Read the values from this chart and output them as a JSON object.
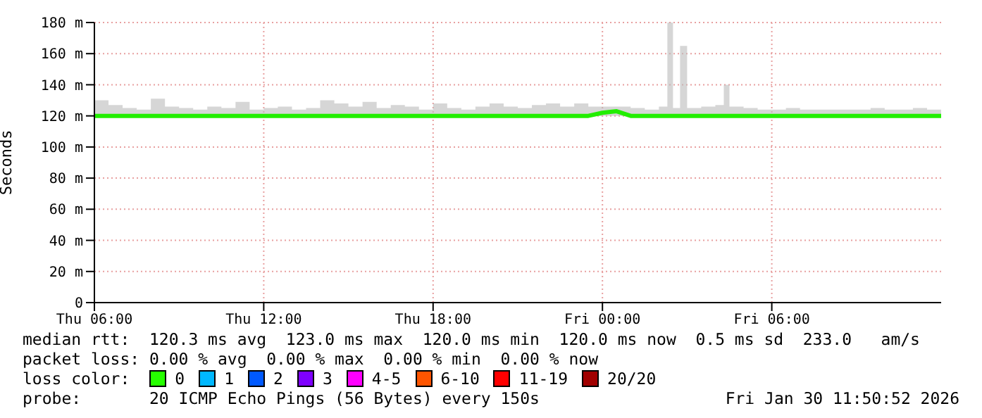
{
  "chart_data": {
    "type": "line",
    "ylabel": "Seconds",
    "x": [
      "2026-01-29T06:00",
      "2026-01-29T06:30",
      "2026-01-29T07:00",
      "2026-01-29T07:30",
      "2026-01-29T08:00",
      "2026-01-29T08:30",
      "2026-01-29T09:00",
      "2026-01-29T09:30",
      "2026-01-29T10:00",
      "2026-01-29T10:30",
      "2026-01-29T11:00",
      "2026-01-29T11:30",
      "2026-01-29T12:00",
      "2026-01-29T12:30",
      "2026-01-29T13:00",
      "2026-01-29T13:30",
      "2026-01-29T14:00",
      "2026-01-29T14:30",
      "2026-01-29T15:00",
      "2026-01-29T15:30",
      "2026-01-29T16:00",
      "2026-01-29T16:30",
      "2026-01-29T17:00",
      "2026-01-29T17:30",
      "2026-01-29T18:00",
      "2026-01-29T18:30",
      "2026-01-29T19:00",
      "2026-01-29T19:30",
      "2026-01-29T20:00",
      "2026-01-29T20:30",
      "2026-01-29T21:00",
      "2026-01-29T21:30",
      "2026-01-29T22:00",
      "2026-01-29T22:30",
      "2026-01-29T23:00",
      "2026-01-29T23:30",
      "2026-01-30T00:00",
      "2026-01-30T00:30",
      "2026-01-30T01:00",
      "2026-01-30T01:30",
      "2026-01-30T02:00",
      "2026-01-30T02:18",
      "2026-01-30T02:30",
      "2026-01-30T02:45",
      "2026-01-30T03:00",
      "2026-01-30T03:30",
      "2026-01-30T04:00",
      "2026-01-30T04:18",
      "2026-01-30T04:30",
      "2026-01-30T05:00",
      "2026-01-30T05:30",
      "2026-01-30T06:00",
      "2026-01-30T06:30",
      "2026-01-30T07:00",
      "2026-01-30T07:30",
      "2026-01-30T08:00",
      "2026-01-30T08:30",
      "2026-01-30T09:00",
      "2026-01-30T09:30",
      "2026-01-30T10:00",
      "2026-01-30T10:30",
      "2026-01-30T11:00",
      "2026-01-30T11:30",
      "2026-01-30T12:00"
    ],
    "series": [
      {
        "color": "#22ee00",
        "values": [
          120,
          120,
          120,
          120,
          120,
          120,
          120,
          120,
          120,
          120,
          120,
          120,
          120,
          120,
          120,
          120,
          120,
          120,
          120,
          120,
          120,
          120,
          120,
          120,
          120,
          120,
          120,
          120,
          120,
          120,
          120,
          120,
          120,
          120,
          120,
          120,
          122,
          123,
          120,
          120,
          120,
          120,
          120,
          120,
          120,
          120,
          120,
          120,
          120,
          120,
          120,
          120,
          120,
          120,
          120,
          120,
          120,
          120,
          120,
          120,
          120,
          120,
          120,
          120
        ],
        "lower": [
          120,
          120,
          120,
          120,
          120,
          120,
          120,
          120,
          120,
          120,
          120,
          120,
          120,
          120,
          120,
          120,
          120,
          120,
          120,
          120,
          120,
          120,
          120,
          120,
          120,
          120,
          120,
          120,
          120,
          120,
          120,
          120,
          120,
          120,
          120,
          120,
          120,
          120,
          120,
          120,
          120,
          120,
          120,
          120,
          120,
          120,
          120,
          120,
          120,
          120,
          120,
          120,
          120,
          120,
          120,
          120,
          120,
          120,
          120,
          120,
          120,
          120,
          120,
          120
        ],
        "upper": [
          130,
          127,
          125,
          124,
          131,
          126,
          125,
          124,
          126,
          125,
          129,
          124,
          125,
          126,
          124,
          125,
          130,
          128,
          126,
          129,
          125,
          127,
          126,
          124,
          128,
          125,
          124,
          126,
          128,
          126,
          125,
          127,
          128,
          126,
          128,
          126,
          126,
          126,
          125,
          124,
          126,
          180,
          125,
          165,
          125,
          126,
          127,
          140,
          126,
          125,
          124,
          124,
          125,
          124,
          124,
          124,
          124,
          124,
          125,
          124,
          124,
          125,
          124,
          124
        ]
      }
    ],
    "xlim": [
      "2026-01-29T06:00",
      "2026-01-30T12:00"
    ],
    "xticks": [
      {
        "value": "2026-01-29T06:00",
        "label": "Thu 06:00"
      },
      {
        "value": "2026-01-29T12:00",
        "label": "Thu 12:00"
      },
      {
        "value": "2026-01-29T18:00",
        "label": "Thu 18:00"
      },
      {
        "value": "2026-01-30T00:00",
        "label": "Fri 00:00"
      },
      {
        "value": "2026-01-30T06:00",
        "label": "Fri 06:00"
      }
    ],
    "ylim": [
      0,
      180
    ],
    "yticks": [
      0,
      {
        "value": 20,
        "label": "20 m"
      },
      {
        "value": 40,
        "label": "40 m"
      },
      {
        "value": 60,
        "label": "60 m"
      },
      {
        "value": 80,
        "label": "80 m"
      },
      {
        "value": 100,
        "label": "100 m"
      },
      {
        "value": 120,
        "label": "120 m"
      },
      {
        "value": 140,
        "label": "140 m"
      },
      {
        "value": 160,
        "label": "160 m"
      },
      {
        "value": 180,
        "label": "180 m"
      }
    ],
    "grid": true,
    "marker": "none",
    "line_style": "solid",
    "annotations": [
      "median rtt:  120.3 ms avg  123.0 ms max  120.0 ms min  120.0 ms now  0.5 ms sd  233.0   am/s",
      "packet loss: 0.00 % avg  0.00 % max  0.00 % min  0.00 % now",
      "loss color:",
      "0",
      "1",
      "2",
      "3",
      "4-5",
      "6-10",
      "11-19",
      "20/20",
      "probe:       20 ICMP Echo Pings (56 Bytes) every 150s",
      "Fri Jan 30 11:50:52 2026"
    ]
  }
}
